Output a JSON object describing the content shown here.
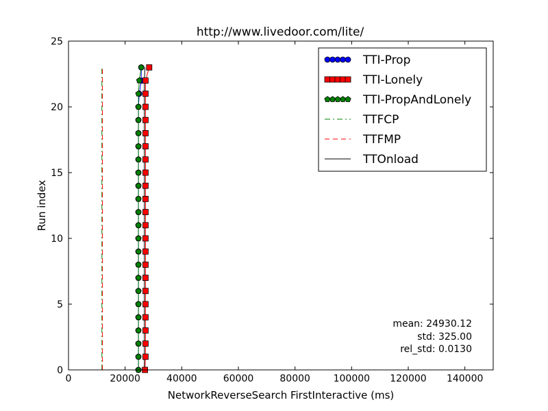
{
  "chart_data": {
    "type": "line",
    "title": "http://www.livedoor.com/lite/",
    "xlabel": "NetworkReverseSearch FirstInteractive (ms)",
    "ylabel": "Run index",
    "xlim": [
      0,
      150000
    ],
    "ylim": [
      0,
      25
    ],
    "xticks": [
      0,
      20000,
      40000,
      60000,
      80000,
      100000,
      120000,
      140000
    ],
    "yticks": [
      0,
      5,
      10,
      15,
      20,
      25
    ],
    "xtick_labels": [
      "0",
      "20000",
      "40000",
      "60000",
      "80000",
      "100000",
      "120000",
      "140000"
    ],
    "ytick_labels": [
      "0",
      "5",
      "10",
      "15",
      "20",
      "25"
    ],
    "legend_placement": "top-right",
    "grid": false,
    "series": [
      {
        "name": "TTI-Prop",
        "style": "line-circle",
        "color": "#0000ff",
        "y": [
          0,
          1,
          2,
          3,
          4,
          5,
          6,
          7,
          8,
          9,
          10,
          11,
          12,
          13,
          14,
          15,
          16,
          17,
          18,
          19,
          20,
          21,
          22,
          23
        ],
        "x": [
          24700,
          24700,
          24700,
          24700,
          24700,
          24700,
          24700,
          24700,
          24700,
          24700,
          24700,
          24700,
          24700,
          24700,
          24700,
          24700,
          24700,
          24700,
          24700,
          24700,
          24700,
          25000,
          25700,
          25700
        ]
      },
      {
        "name": "TTI-Lonely",
        "style": "line-square",
        "color": "#ff0000",
        "y": [
          0,
          1,
          2,
          3,
          4,
          5,
          6,
          7,
          8,
          9,
          10,
          11,
          12,
          13,
          14,
          15,
          16,
          17,
          18,
          19,
          20,
          21,
          22,
          23
        ],
        "x": [
          27000,
          27200,
          27200,
          27200,
          27200,
          27200,
          27200,
          27200,
          27200,
          27200,
          27200,
          27200,
          27200,
          27200,
          27200,
          27200,
          27200,
          27200,
          27200,
          27200,
          27200,
          27200,
          27200,
          28500
        ]
      },
      {
        "name": "TTI-PropAndLonely",
        "style": "line-pentagon",
        "color": "#008000",
        "y": [
          0,
          1,
          2,
          3,
          4,
          5,
          6,
          7,
          8,
          9,
          10,
          11,
          12,
          13,
          14,
          15,
          16,
          17,
          18,
          19,
          20,
          21,
          22,
          23
        ],
        "x": [
          24700,
          24700,
          24700,
          24700,
          24700,
          24700,
          24700,
          24700,
          24700,
          24700,
          24700,
          24700,
          24700,
          24700,
          24700,
          24700,
          24700,
          24700,
          24700,
          24700,
          24700,
          24700,
          25000,
          25700
        ]
      },
      {
        "name": "TTFCP",
        "style": "dashdot",
        "color": "#008000",
        "y": [
          0,
          1,
          2,
          3,
          4,
          5,
          6,
          7,
          8,
          9,
          10,
          11,
          12,
          13,
          14,
          15,
          16,
          17,
          18,
          19,
          20,
          21,
          22,
          23
        ],
        "x": [
          11800,
          11800,
          11800,
          11800,
          11800,
          11800,
          11800,
          11800,
          11800,
          11800,
          11800,
          11800,
          11800,
          11800,
          11800,
          11800,
          11800,
          11800,
          11800,
          11800,
          11800,
          11800,
          11800,
          11800
        ]
      },
      {
        "name": "TTFMP",
        "style": "dashed",
        "color": "#ff0000",
        "y": [
          0,
          1,
          2,
          3,
          4,
          5,
          6,
          7,
          8,
          9,
          10,
          11,
          12,
          13,
          14,
          15,
          16,
          17,
          18,
          19,
          20,
          21,
          22,
          23
        ],
        "x": [
          12000,
          12000,
          12000,
          12000,
          12000,
          12000,
          12000,
          12000,
          12000,
          12000,
          12000,
          12000,
          12000,
          12000,
          12000,
          12000,
          12000,
          12000,
          12000,
          12000,
          12000,
          12000,
          12000,
          12000
        ]
      },
      {
        "name": "TTOnload",
        "style": "solid",
        "color": "#000000",
        "y": [
          0,
          1,
          2,
          3,
          4,
          5,
          6,
          7,
          8,
          9,
          10,
          11,
          12,
          13,
          14,
          15,
          16,
          17,
          18,
          19,
          20,
          21,
          22,
          23
        ],
        "x": [
          26800,
          26800,
          26800,
          26800,
          26800,
          26800,
          26800,
          26800,
          26800,
          26800,
          26800,
          26800,
          26800,
          26800,
          26800,
          26800,
          26800,
          26800,
          26800,
          26800,
          26800,
          26800,
          26800,
          27000
        ]
      }
    ],
    "annotations": [
      "mean: 24930.12",
      "std: 325.00",
      "rel_std: 0.0130"
    ]
  }
}
